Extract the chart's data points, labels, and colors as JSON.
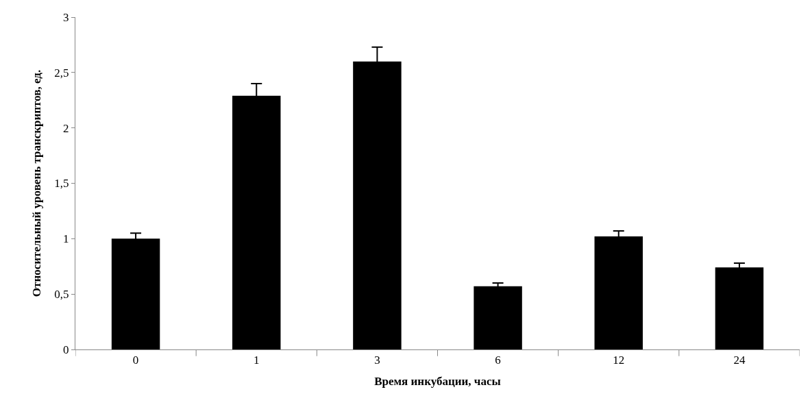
{
  "chart_data": {
    "type": "bar",
    "xlabel": "Время инкубации, часы",
    "ylabel": "Относительный уровень транскриптов, ед.",
    "categories": [
      "0",
      "1",
      "3",
      "6",
      "12",
      "24"
    ],
    "values": [
      1.0,
      2.29,
      2.6,
      0.57,
      1.02,
      0.74
    ],
    "errors": [
      0.05,
      0.11,
      0.13,
      0.03,
      0.05,
      0.04
    ],
    "color": "#000000",
    "ylim": [
      0,
      3
    ],
    "yticks": [
      {
        "value": 0,
        "label": "0"
      },
      {
        "value": 0.5,
        "label": "0,5"
      },
      {
        "value": 1,
        "label": "1"
      },
      {
        "value": 1.5,
        "label": "1,5"
      },
      {
        "value": 2,
        "label": "2"
      },
      {
        "value": 2.5,
        "label": "2,5"
      },
      {
        "value": 3,
        "label": "3"
      }
    ]
  }
}
